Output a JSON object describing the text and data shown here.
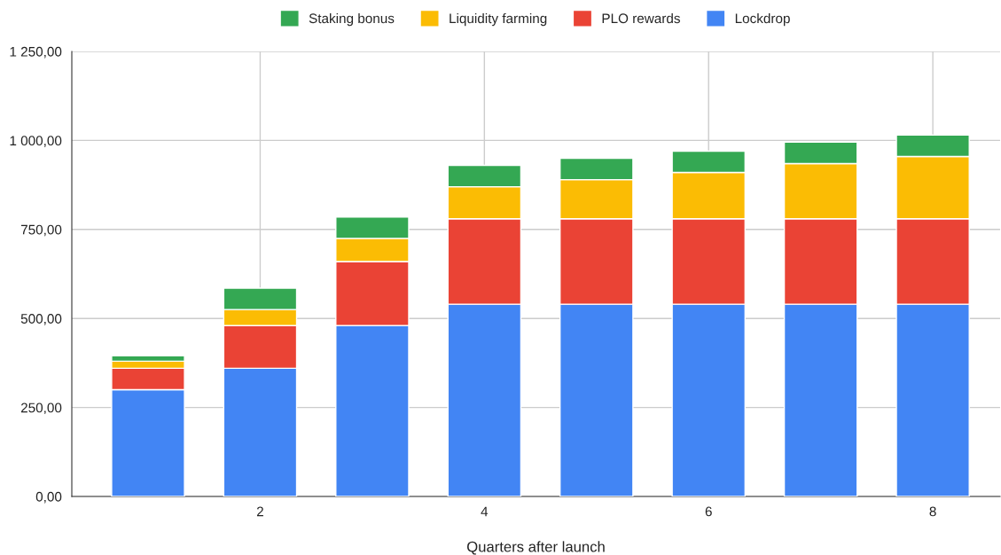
{
  "chart_data": {
    "type": "bar",
    "stacked": true,
    "xlabel": "Quarters after launch",
    "x": [
      1,
      2,
      3,
      4,
      5,
      6,
      7,
      8
    ],
    "xlim": [
      0.32,
      8.6
    ],
    "xticks": [
      2,
      4,
      6,
      8
    ],
    "ylim": [
      0,
      1250
    ],
    "yticks": [
      {
        "value": 0,
        "label": "0,00"
      },
      {
        "value": 250,
        "label": "250,00"
      },
      {
        "value": 500,
        "label": "500,00"
      },
      {
        "value": 750,
        "label": "750,00"
      },
      {
        "value": 1000,
        "label": "1 000,00"
      },
      {
        "value": 1250,
        "label": "1 250,00"
      }
    ],
    "grid": true,
    "legend": "top",
    "series": [
      {
        "name": "Lockdrop",
        "color": "#4285f4",
        "values": [
          300,
          360,
          480,
          540,
          540,
          540,
          540,
          540
        ]
      },
      {
        "name": "PLO rewards",
        "color": "#ea4335",
        "values": [
          60,
          120,
          180,
          240,
          240,
          240,
          240,
          240
        ]
      },
      {
        "name": "Liquidity farming",
        "color": "#fbbc04",
        "values": [
          20,
          45,
          65,
          90,
          110,
          130,
          155,
          175
        ]
      },
      {
        "name": "Staking bonus",
        "color": "#34a853",
        "values": [
          15,
          60,
          60,
          60,
          60,
          60,
          60,
          60
        ]
      }
    ]
  }
}
